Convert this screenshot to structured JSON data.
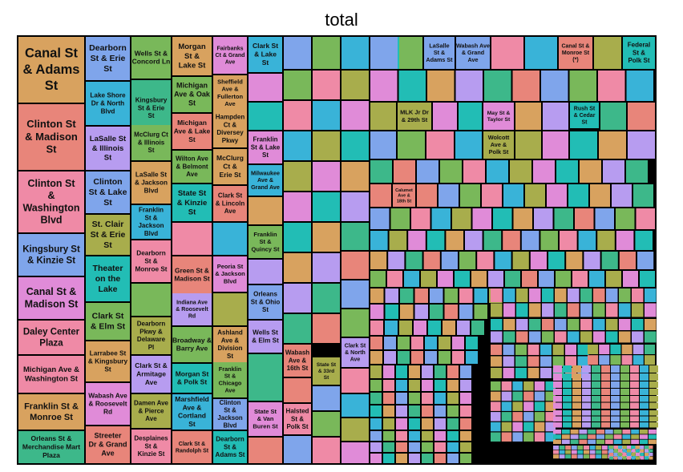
{
  "chart_data": {
    "type": "treemap",
    "title": "total",
    "palette": [
      "#e8857a",
      "#d8a25f",
      "#a8ad4c",
      "#79b85a",
      "#3db88a",
      "#22bdb5",
      "#39b3d8",
      "#7fa5eb",
      "#b79cf0",
      "#e08bd8",
      "#ef8aa6"
    ],
    "labeled_tiles": [
      {
        "label": "Canal St & Adams St",
        "rank": 1,
        "color": "#d8a25f"
      },
      {
        "label": "Clinton St & Madison St",
        "rank": 2,
        "color": "#e8857a"
      },
      {
        "label": "Clinton St & Washington Blvd",
        "rank": 3,
        "color": "#ef8aa6"
      },
      {
        "label": "Kingsbury St & Kinzie St",
        "rank": 4,
        "color": "#7fa5eb"
      },
      {
        "label": "Canal St & Madison St",
        "rank": 5,
        "color": "#e08bd8"
      },
      {
        "label": "Daley Center Plaza",
        "rank": 6,
        "color": "#ef8aa6"
      },
      {
        "label": "Michigan Ave & Washington St",
        "rank": 7,
        "color": "#ef8aa6"
      },
      {
        "label": "Franklin St & Monroe St",
        "rank": 8,
        "color": "#d8a25f"
      },
      {
        "label": "Orleans St & Merchandise Mart Plaza",
        "rank": 9,
        "color": "#3db88a"
      },
      {
        "label": "Dearborn St & Erie St",
        "rank": 10,
        "color": "#7fa5eb"
      },
      {
        "label": "Lake Shore Dr & North Blvd",
        "rank": 11,
        "color": "#39b3d8"
      },
      {
        "label": "LaSalle St & Illinois St",
        "rank": 12,
        "color": "#b79cf0"
      },
      {
        "label": "Clinton St & Lake St",
        "rank": 13,
        "color": "#7fa5eb"
      },
      {
        "label": "St. Clair St & Erie St",
        "rank": 14,
        "color": "#a8ad4c"
      },
      {
        "label": "Theater on the Lake",
        "rank": 15,
        "color": "#22bdb5"
      },
      {
        "label": "Clark St & Elm St",
        "rank": 16,
        "color": "#79b85a"
      },
      {
        "label": "Larrabee St & Kingsbury St",
        "rank": 17,
        "color": "#d8a25f"
      },
      {
        "label": "Wabash Ave & Roosevelt Rd",
        "rank": 18,
        "color": "#e08bd8"
      },
      {
        "label": "Streeter Dr & Grand Ave",
        "rank": 19,
        "color": "#e8857a"
      },
      {
        "label": "Wells St & Concord Ln",
        "rank": 20,
        "color": "#79b85a"
      },
      {
        "label": "Kingsbury St & Erie St",
        "rank": 21,
        "color": "#3db88a"
      },
      {
        "label": "McClurg Ct & Illinois St",
        "rank": 22,
        "color": "#79b85a"
      },
      {
        "label": "LaSalle St & Jackson Blvd",
        "rank": 23,
        "color": "#d8a25f"
      },
      {
        "label": "Franklin St & Jackson Blvd",
        "rank": 24,
        "color": "#39b3d8"
      },
      {
        "label": "Dearborn St & Monroe St",
        "rank": 25,
        "color": "#ef8aa6"
      },
      {
        "label": "Dearborn Pkwy & Delaware Pl",
        "rank": 26,
        "color": "#a8ad4c"
      },
      {
        "label": "Clark St & Armitage Ave",
        "rank": 27,
        "color": "#b79cf0"
      },
      {
        "label": "Damen Ave & Pierce Ave",
        "rank": 28,
        "color": "#a8ad4c"
      },
      {
        "label": "Desplaines St & Kinzie St",
        "rank": 29,
        "color": "#ef8aa6"
      },
      {
        "label": "Morgan St & Lake St",
        "rank": 30,
        "color": "#d8a25f"
      },
      {
        "label": "Michigan Ave & Oak St",
        "rank": 31,
        "color": "#79b85a"
      },
      {
        "label": "Michigan Ave & Lake St",
        "rank": 32,
        "color": "#e8857a"
      },
      {
        "label": "Wilton Ave & Belmont Ave",
        "rank": 33,
        "color": "#79b85a"
      },
      {
        "label": "State St & Kinzie St",
        "rank": 34,
        "color": "#22bdb5"
      },
      {
        "label": "Green St & Madison St",
        "rank": 35,
        "color": "#e8857a"
      },
      {
        "label": "Indiana Ave & Roosevelt Rd",
        "rank": 36,
        "color": "#b79cf0"
      },
      {
        "label": "Broadway & Barry Ave",
        "rank": 37,
        "color": "#79b85a"
      },
      {
        "label": "Morgan St & Polk St",
        "rank": 38,
        "color": "#22bdb5"
      },
      {
        "label": "Marshfield Ave & Cortland St",
        "rank": 39,
        "color": "#39b3d8"
      },
      {
        "label": "Clark St & Randolph St",
        "rank": 40,
        "color": "#e8857a"
      },
      {
        "label": "Fairbanks Ct & Grand Ave",
        "rank": 41,
        "color": "#e08bd8"
      },
      {
        "label": "Sheffield Ave & Fullerton Ave",
        "rank": 42,
        "color": "#d8a25f"
      },
      {
        "label": "Hampden Ct & Diversey Pkwy",
        "rank": 43,
        "color": "#d8a25f"
      },
      {
        "label": "McClurg Ct & Erie St",
        "rank": 44,
        "color": "#d8a25f"
      },
      {
        "label": "Clark St & Lincoln Ave",
        "rank": 45,
        "color": "#e8857a"
      },
      {
        "label": "Peoria St & Jackson Blvd",
        "rank": 46,
        "color": "#e08bd8"
      },
      {
        "label": "Ashland Ave & Division St",
        "rank": 47,
        "color": "#d8a25f"
      },
      {
        "label": "Franklin St & Chicago Ave",
        "rank": 48,
        "color": "#79b85a"
      },
      {
        "label": "Clinton St & Jackson Blvd",
        "rank": 49,
        "color": "#7fa5eb"
      },
      {
        "label": "Dearborn St & Adams St",
        "rank": 50,
        "color": "#22bdb5"
      },
      {
        "label": "Clark St & Lake St",
        "rank": 51,
        "color": "#39b3d8"
      },
      {
        "label": "Franklin St & Lake St",
        "rank": 52,
        "color": "#e08bd8"
      },
      {
        "label": "Milwaukee Ave & Grand Ave",
        "rank": 53,
        "color": "#39b3d8"
      },
      {
        "label": "Franklin St & Quincy St",
        "rank": 54,
        "color": "#79b85a"
      },
      {
        "label": "Orleans St & Ohio St",
        "rank": 55,
        "color": "#7fa5eb"
      },
      {
        "label": "Wells St & Elm St",
        "rank": 56,
        "color": "#b79cf0"
      },
      {
        "label": "State St & Van Buren St",
        "rank": 57,
        "color": "#e08bd8"
      },
      {
        "label": "Wabash Ave & 16th St",
        "rank": 58,
        "color": "#e8857a"
      },
      {
        "label": "Halsted St & Polk St",
        "rank": 59,
        "color": "#ef8aa6"
      },
      {
        "label": "State St & 33rd St",
        "rank": 60,
        "color": "#a8ad4c"
      },
      {
        "label": "Clark St & North Ave",
        "rank": 61,
        "color": "#b79cf0"
      },
      {
        "label": "LaSalle St & Adams St",
        "rank": 62,
        "color": "#7fa5eb"
      },
      {
        "label": "Wabash Ave & Grand Ave",
        "rank": 63,
        "color": "#7fa5eb"
      },
      {
        "label": "Canal St & Monroe St (*)",
        "rank": 64,
        "color": "#e8857a"
      },
      {
        "label": "Federal St & Polk St",
        "rank": 65,
        "color": "#22bdb5"
      },
      {
        "label": "MLK Jr Dr & 29th St",
        "rank": 66,
        "color": "#a8ad4c"
      },
      {
        "label": "May St & Taylor St",
        "rank": 67,
        "color": "#e08bd8"
      },
      {
        "label": "Rush St & Cedar St",
        "rank": 68,
        "color": "#22bdb5"
      },
      {
        "label": "Wolcott Ave & Polk St",
        "rank": 69,
        "color": "#a8ad4c"
      },
      {
        "label": "Calumet Ave & 18th St",
        "rank": 70,
        "color": "#e8857a"
      }
    ]
  }
}
